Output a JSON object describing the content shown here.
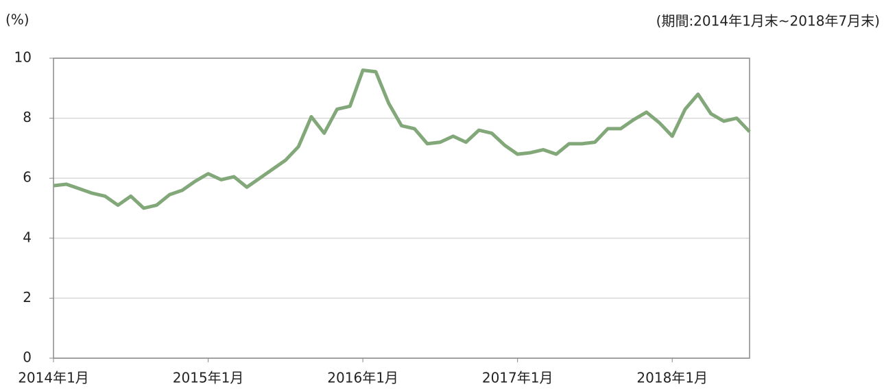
{
  "chart_data": {
    "type": "line",
    "y_label": "(%)",
    "annotation": "(期間:2014年1月末~2018年7月末)",
    "categories": [
      "2014年1月",
      null,
      null,
      null,
      null,
      null,
      null,
      null,
      null,
      null,
      null,
      null,
      "2015年1月",
      null,
      null,
      null,
      null,
      null,
      null,
      null,
      null,
      null,
      null,
      null,
      "2016年1月",
      null,
      null,
      null,
      null,
      null,
      null,
      null,
      null,
      null,
      null,
      null,
      "2017年1月",
      null,
      null,
      null,
      null,
      null,
      null,
      null,
      null,
      null,
      null,
      null,
      "2018年1月",
      null,
      null,
      null,
      null,
      null,
      null
    ],
    "series": [
      {
        "color": "#82a87a",
        "values": [
          5.75,
          5.8,
          5.65,
          5.5,
          5.4,
          5.1,
          5.4,
          5.0,
          5.1,
          5.45,
          5.6,
          5.9,
          6.15,
          5.95,
          6.05,
          5.7,
          6.0,
          6.3,
          6.6,
          7.05,
          8.05,
          7.5,
          8.3,
          8.4,
          9.6,
          9.55,
          8.5,
          7.75,
          7.65,
          7.15,
          7.2,
          7.4,
          7.2,
          7.6,
          7.5,
          7.1,
          6.8,
          6.85,
          6.95,
          6.8,
          7.15,
          7.15,
          7.2,
          7.65,
          7.65,
          7.95,
          8.2,
          7.85,
          7.4,
          8.3,
          8.8,
          8.15,
          7.9,
          8.0,
          7.55
        ]
      }
    ],
    "ylim": [
      0,
      10
    ],
    "yticks": [
      0,
      2,
      4,
      6,
      8,
      10
    ],
    "grid": true
  }
}
